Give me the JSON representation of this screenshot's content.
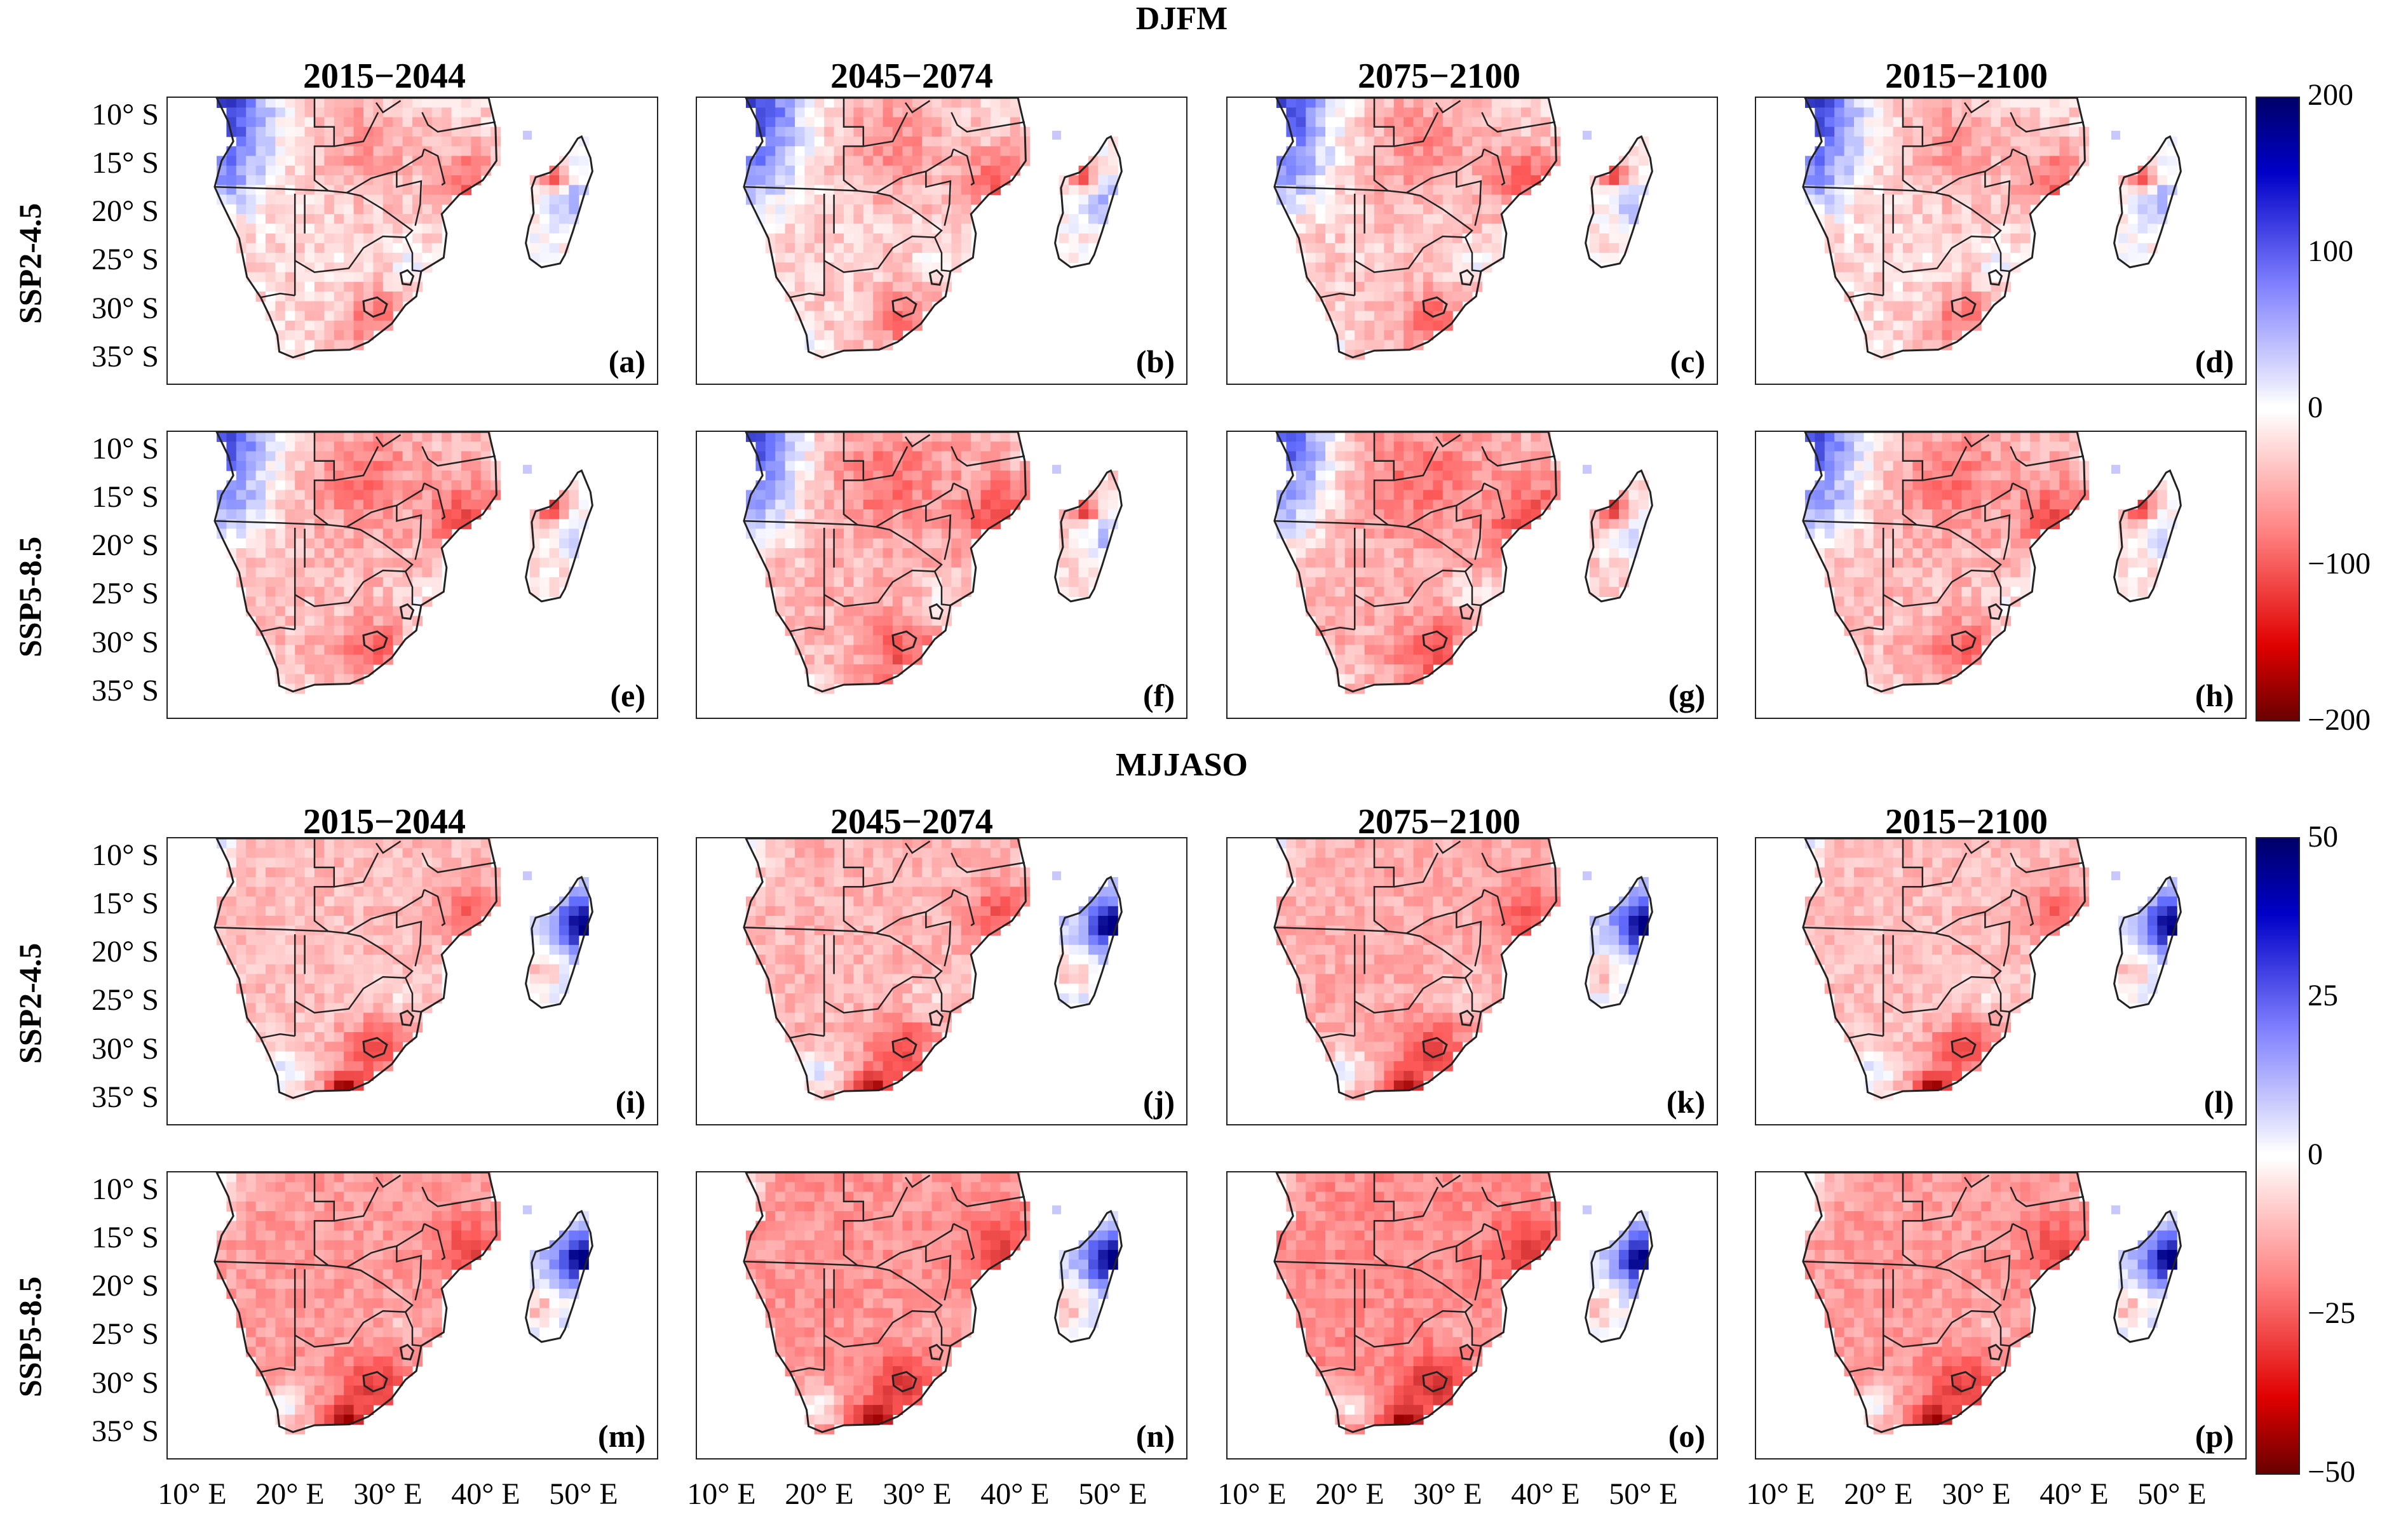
{
  "sections": [
    {
      "title": "DJFM",
      "scheme": "djfm"
    },
    {
      "title": "MJJASO",
      "scheme": "mjjaso"
    }
  ],
  "column_titles": [
    "2015−2044",
    "2045−2074",
    "2075−2100",
    "2015−2100"
  ],
  "row_labels": [
    "SSP2-4.5",
    "SSP5-8.5",
    "SSP2-4.5",
    "SSP5-8.5"
  ],
  "panel_labels": [
    "(a)",
    "(b)",
    "(c)",
    "(d)",
    "(e)",
    "(f)",
    "(g)",
    "(h)",
    "(i)",
    "(j)",
    "(k)",
    "(l)",
    "(m)",
    "(n)",
    "(o)",
    "(p)"
  ],
  "y_ticks": [
    "10° S",
    "15° S",
    "20° S",
    "25° S",
    "30° S",
    "35° S"
  ],
  "x_ticks": [
    "10° E",
    "20° E",
    "30° E",
    "40° E",
    "50° E"
  ],
  "colorbars": [
    {
      "ticks": [
        "200",
        "100",
        "0",
        "−100",
        "−200"
      ],
      "range": [
        -200,
        200
      ]
    },
    {
      "ticks": [
        "50",
        "25",
        "0",
        "−25",
        "−50"
      ],
      "range": [
        -50,
        50
      ]
    }
  ],
  "colors": {
    "positive": "#0000c8",
    "negative": "#e00000",
    "neutral": "#ffffff",
    "coast": "#222222"
  }
}
